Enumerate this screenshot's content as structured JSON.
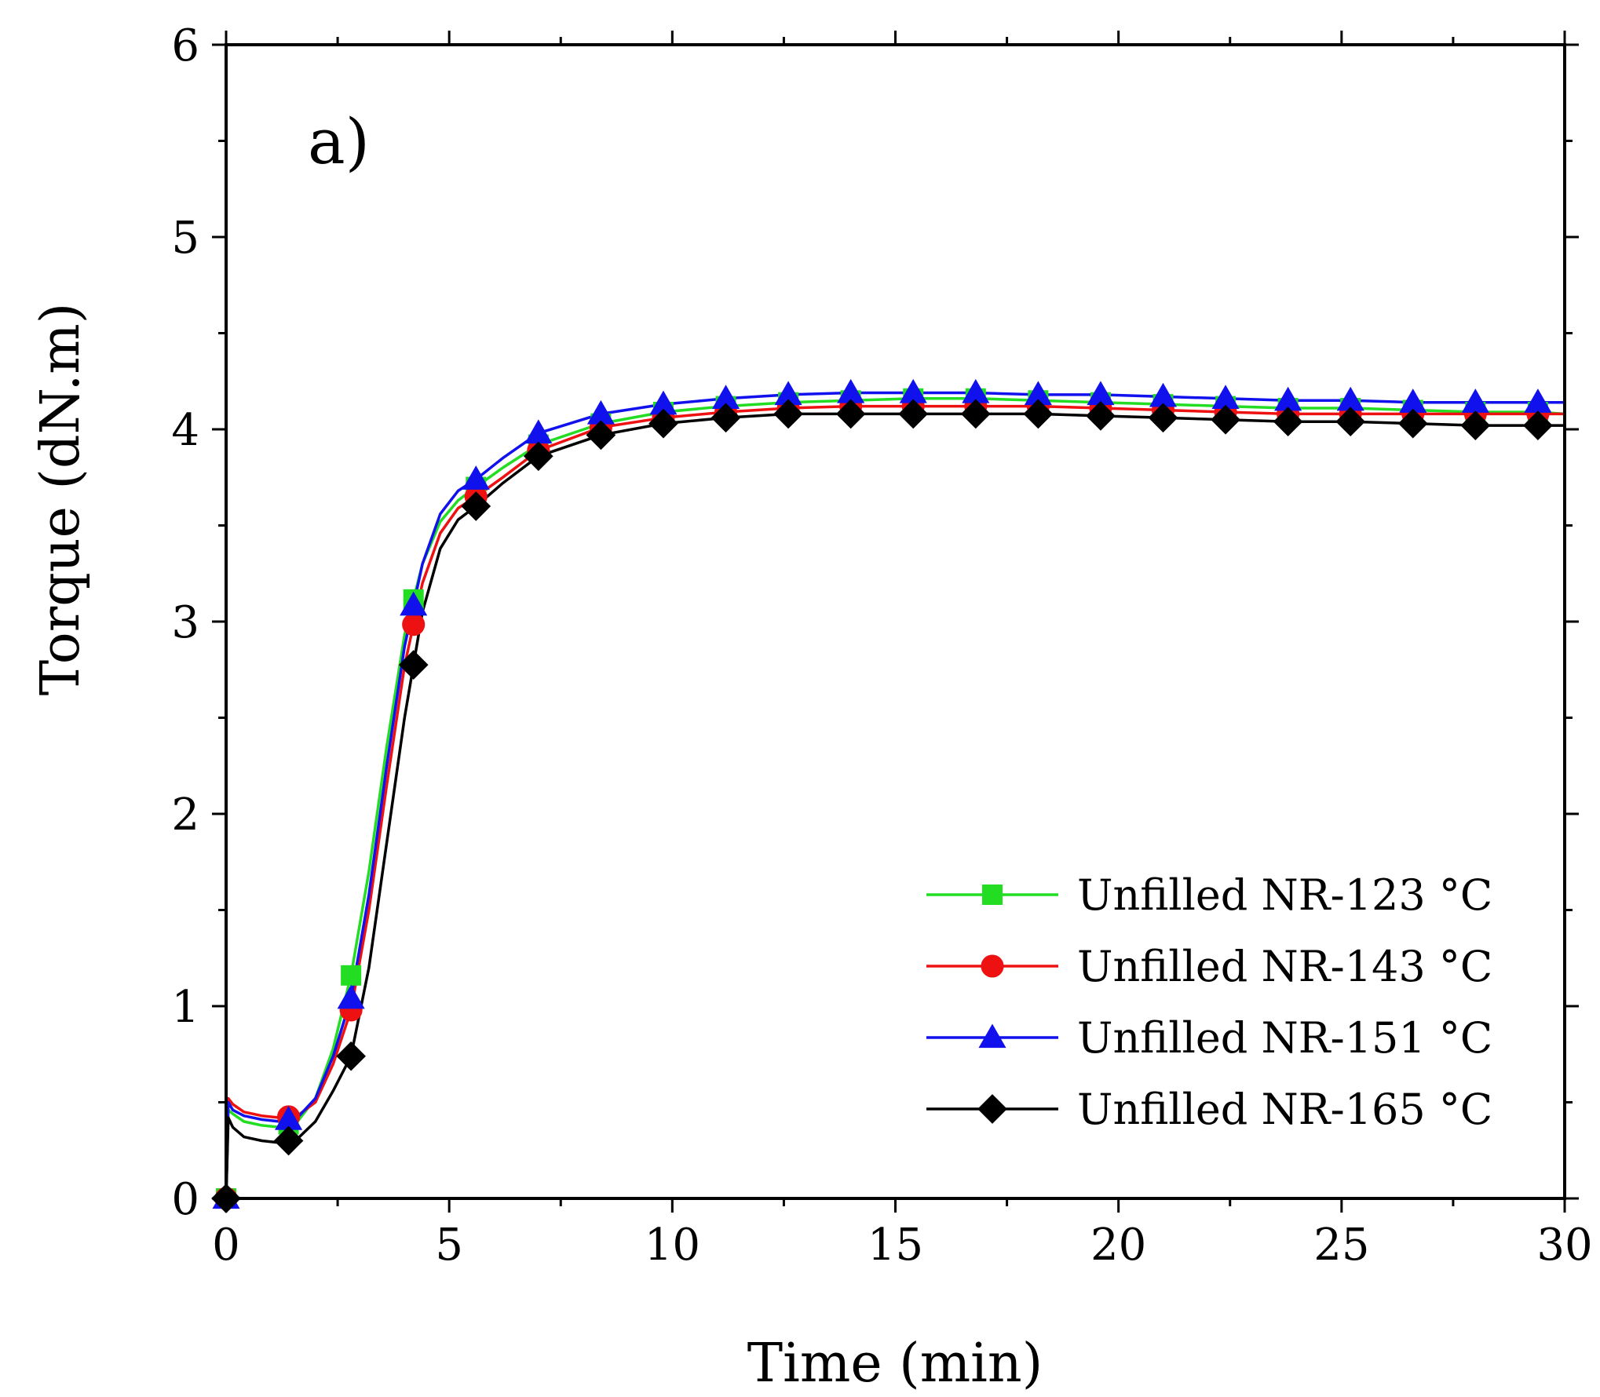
{
  "chart_data": {
    "type": "line",
    "panel_label": "a)",
    "xlabel": "Time (min)",
    "ylabel": "Torque (dN.m)",
    "xlim": [
      0,
      30
    ],
    "ylim": [
      0,
      6
    ],
    "xticks": [
      0,
      5,
      10,
      15,
      20,
      25,
      30
    ],
    "yticks": [
      0,
      1,
      2,
      3,
      4,
      5,
      6
    ],
    "xtick_labels": [
      "0",
      "5",
      "10",
      "15",
      "20",
      "25",
      "30"
    ],
    "ytick_labels": [
      "0",
      "1",
      "2",
      "3",
      "4",
      "5",
      "6"
    ],
    "grid": false,
    "legend_position": "lower-right",
    "series": [
      {
        "name": "Unfilled NR-123 °C",
        "color": "#22dd22",
        "marker": "square",
        "x": [
          0,
          0.05,
          0.15,
          0.4,
          0.8,
          1.2,
          1.6,
          2.0,
          2.4,
          2.8,
          3.2,
          3.6,
          4.0,
          4.4,
          4.8,
          5.2,
          5.6,
          6.2,
          7.0,
          8.4,
          9.8,
          11.2,
          12.6,
          14.0,
          15.4,
          16.8,
          18.2,
          19.6,
          21.0,
          22.4,
          23.8,
          25.2,
          26.6,
          28.0,
          29.4,
          30.0
        ],
        "y": [
          0.0,
          0.46,
          0.44,
          0.4,
          0.38,
          0.37,
          0.4,
          0.52,
          0.78,
          1.16,
          1.7,
          2.35,
          2.93,
          3.3,
          3.52,
          3.63,
          3.7,
          3.8,
          3.92,
          4.03,
          4.09,
          4.12,
          4.14,
          4.15,
          4.16,
          4.16,
          4.15,
          4.14,
          4.13,
          4.12,
          4.11,
          4.11,
          4.1,
          4.09,
          4.09,
          4.08
        ],
        "markers_x": [
          0,
          1.4,
          2.8,
          4.2,
          5.6,
          7.0,
          8.4,
          9.8,
          11.2,
          12.6,
          14.0,
          15.4,
          16.8,
          18.2,
          19.6,
          21.0,
          22.4,
          23.8,
          25.2,
          26.6,
          28.0,
          29.4
        ]
      },
      {
        "name": "Unfilled NR-143 °C",
        "color": "#ee1111",
        "marker": "circle",
        "x": [
          0,
          0.05,
          0.15,
          0.4,
          0.8,
          1.2,
          1.6,
          2.0,
          2.4,
          2.8,
          3.2,
          3.6,
          4.0,
          4.4,
          4.8,
          5.2,
          5.6,
          6.2,
          7.0,
          8.4,
          9.8,
          11.2,
          12.6,
          14.0,
          15.4,
          16.8,
          18.2,
          19.6,
          21.0,
          22.4,
          23.8,
          25.2,
          26.6,
          28.0,
          29.4,
          30.0
        ],
        "y": [
          0.0,
          0.52,
          0.49,
          0.45,
          0.43,
          0.42,
          0.43,
          0.5,
          0.7,
          0.98,
          1.5,
          2.15,
          2.77,
          3.2,
          3.46,
          3.59,
          3.65,
          3.75,
          3.89,
          4.01,
          4.06,
          4.09,
          4.11,
          4.12,
          4.12,
          4.12,
          4.12,
          4.11,
          4.1,
          4.09,
          4.08,
          4.08,
          4.08,
          4.08,
          4.08,
          4.08
        ],
        "markers_x": [
          0,
          1.4,
          2.8,
          4.2,
          5.6,
          7.0,
          8.4,
          9.8,
          11.2,
          12.6,
          14.0,
          15.4,
          16.8,
          18.2,
          19.6,
          21.0,
          22.4,
          23.8,
          25.2,
          26.6,
          28.0,
          29.4
        ]
      },
      {
        "name": "Unfilled NR-151 °C",
        "color": "#1111ee",
        "marker": "triangle",
        "x": [
          0,
          0.05,
          0.15,
          0.4,
          0.8,
          1.2,
          1.6,
          2.0,
          2.4,
          2.8,
          3.2,
          3.6,
          4.0,
          4.4,
          4.8,
          5.2,
          5.6,
          6.2,
          7.0,
          8.4,
          9.8,
          11.2,
          12.6,
          14.0,
          15.4,
          16.8,
          18.2,
          19.6,
          21.0,
          22.4,
          23.8,
          25.2,
          26.6,
          28.0,
          29.4,
          30.0
        ],
        "y": [
          0.0,
          0.5,
          0.46,
          0.43,
          0.41,
          0.4,
          0.42,
          0.52,
          0.74,
          1.04,
          1.58,
          2.25,
          2.87,
          3.3,
          3.56,
          3.68,
          3.74,
          3.85,
          3.98,
          4.08,
          4.13,
          4.16,
          4.18,
          4.19,
          4.19,
          4.19,
          4.18,
          4.18,
          4.17,
          4.16,
          4.15,
          4.15,
          4.14,
          4.14,
          4.14,
          4.14
        ],
        "markers_x": [
          0,
          1.4,
          2.8,
          4.2,
          5.6,
          7.0,
          8.4,
          9.8,
          11.2,
          12.6,
          14.0,
          15.4,
          16.8,
          18.2,
          19.6,
          21.0,
          22.4,
          23.8,
          25.2,
          26.6,
          28.0,
          29.4
        ]
      },
      {
        "name": "Unfilled NR-165 °C",
        "color": "#000000",
        "marker": "diamond",
        "x": [
          0,
          0.05,
          0.15,
          0.4,
          0.8,
          1.2,
          1.6,
          2.0,
          2.4,
          2.8,
          3.2,
          3.6,
          4.0,
          4.4,
          4.8,
          5.2,
          5.6,
          6.2,
          7.0,
          8.4,
          9.8,
          11.2,
          12.6,
          14.0,
          15.4,
          16.8,
          18.2,
          19.6,
          21.0,
          22.4,
          23.8,
          25.2,
          26.6,
          28.0,
          29.4,
          30.0
        ],
        "y": [
          0.0,
          0.42,
          0.37,
          0.32,
          0.3,
          0.29,
          0.31,
          0.4,
          0.56,
          0.74,
          1.2,
          1.85,
          2.5,
          3.05,
          3.38,
          3.53,
          3.6,
          3.72,
          3.86,
          3.97,
          4.03,
          4.06,
          4.08,
          4.08,
          4.08,
          4.08,
          4.08,
          4.07,
          4.06,
          4.05,
          4.04,
          4.04,
          4.03,
          4.02,
          4.02,
          4.02
        ],
        "markers_x": [
          0,
          1.4,
          2.8,
          4.2,
          5.6,
          7.0,
          8.4,
          9.8,
          11.2,
          12.6,
          14.0,
          15.4,
          16.8,
          18.2,
          19.6,
          21.0,
          22.4,
          23.8,
          25.2,
          26.6,
          28.0,
          29.4
        ]
      }
    ]
  }
}
